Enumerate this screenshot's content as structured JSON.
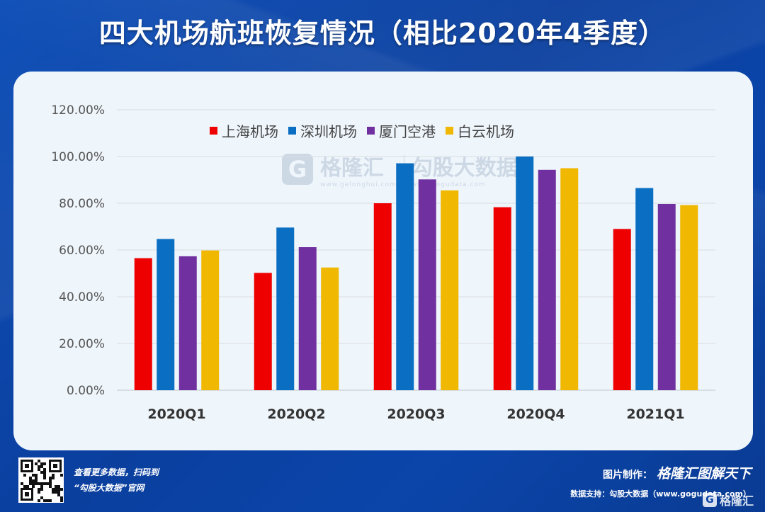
{
  "title": "四大机场航班恢复情况（相比2020年4季度）",
  "watermark": {
    "brand1": "格隆汇",
    "url1": "www.gelonghui.com",
    "brand2": "勾股大数据",
    "url2": "www.gogudata.com"
  },
  "footer": {
    "promo_line1": "查看更多数据，扫码到",
    "promo_line2": "“勾股大数据”官网",
    "credit_label": "图片制作：",
    "credit_brand": "格隆汇图解天下",
    "source": "数据支持：勾股大数据（www.gogudata.com）",
    "corner_brand": "格隆汇"
  },
  "colors": {
    "上海机场": "#ee0000",
    "深圳机场": "#0a6fc2",
    "厦门空港": "#7030a0",
    "白云机场": "#f0b800"
  },
  "chart_data": {
    "type": "bar",
    "title": "四大机场航班恢复情况（相比2020年4季度）",
    "categories": [
      "2020Q1",
      "2020Q2",
      "2020Q3",
      "2020Q4",
      "2021Q1"
    ],
    "series": [
      {
        "name": "上海机场",
        "values": [
          56.5,
          50.2,
          80.0,
          78.3,
          69.0
        ]
      },
      {
        "name": "深圳机场",
        "values": [
          64.7,
          69.6,
          97.1,
          100.0,
          86.5
        ]
      },
      {
        "name": "厦门空港",
        "values": [
          57.3,
          61.2,
          90.2,
          94.3,
          79.7
        ]
      },
      {
        "name": "白云机场",
        "values": [
          59.8,
          52.5,
          85.5,
          95.0,
          79.2
        ]
      }
    ],
    "ylim": [
      0,
      120
    ],
    "yticks": [
      "0.00%",
      "20.00%",
      "40.00%",
      "60.00%",
      "80.00%",
      "100.00%",
      "120.00%"
    ],
    "ytick_values": [
      0,
      20,
      40,
      60,
      80,
      100,
      120
    ],
    "xlabel": "",
    "ylabel": "",
    "grid": true,
    "legend": "top"
  }
}
